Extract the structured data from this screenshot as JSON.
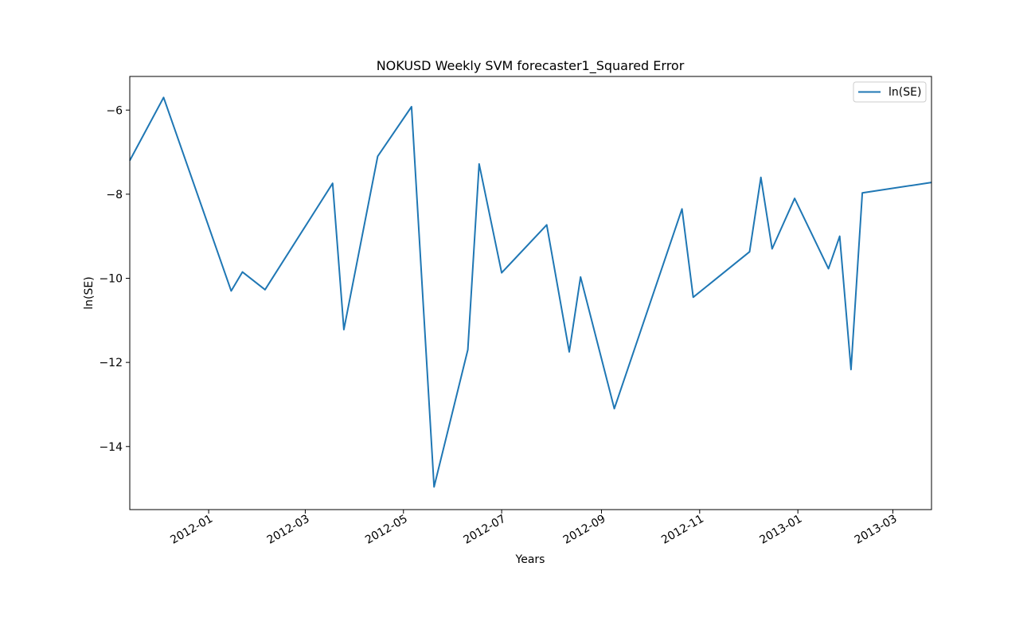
{
  "chart_data": {
    "type": "line",
    "title": "NOKUSD Weekly SVM forecaster1_Squared Error",
    "xlabel": "Years",
    "ylabel": "ln(SE)",
    "xlim": [
      "2011-11-13",
      "2013-03-25"
    ],
    "ylim": [
      -15.5,
      -5.2
    ],
    "x_ticks": [
      "2012-01",
      "2012-03",
      "2012-05",
      "2012-07",
      "2012-09",
      "2012-11",
      "2013-01",
      "2013-03"
    ],
    "y_ticks": [
      -6,
      -8,
      -10,
      -12,
      -14
    ],
    "grid": false,
    "legend": "top-right",
    "series": [
      {
        "name": "ln(SE)",
        "color": "#1f77b4",
        "x": [
          "2011-11-13",
          "2011-12-04",
          "2012-01-15",
          "2012-01-22",
          "2012-02-05",
          "2012-03-18",
          "2012-03-25",
          "2012-04-15",
          "2012-05-06",
          "2012-05-20",
          "2012-06-10",
          "2012-06-17",
          "2012-07-01",
          "2012-07-29",
          "2012-08-12",
          "2012-08-19",
          "2012-09-09",
          "2012-10-21",
          "2012-10-28",
          "2012-12-02",
          "2012-12-09",
          "2012-12-16",
          "2012-12-30",
          "2013-01-20",
          "2013-01-27",
          "2013-02-03",
          "2013-02-10",
          "2013-03-25"
        ],
        "values": [
          -7.2,
          -5.7,
          -10.3,
          -9.85,
          -10.27,
          -7.74,
          -11.22,
          -7.1,
          -5.92,
          -14.96,
          -11.7,
          -7.28,
          -9.87,
          -8.73,
          -11.75,
          -9.97,
          -13.1,
          -8.35,
          -10.45,
          -9.37,
          -7.6,
          -9.3,
          -8.1,
          -9.77,
          -9.0,
          -12.17,
          -7.97,
          -7.72
        ]
      }
    ]
  }
}
